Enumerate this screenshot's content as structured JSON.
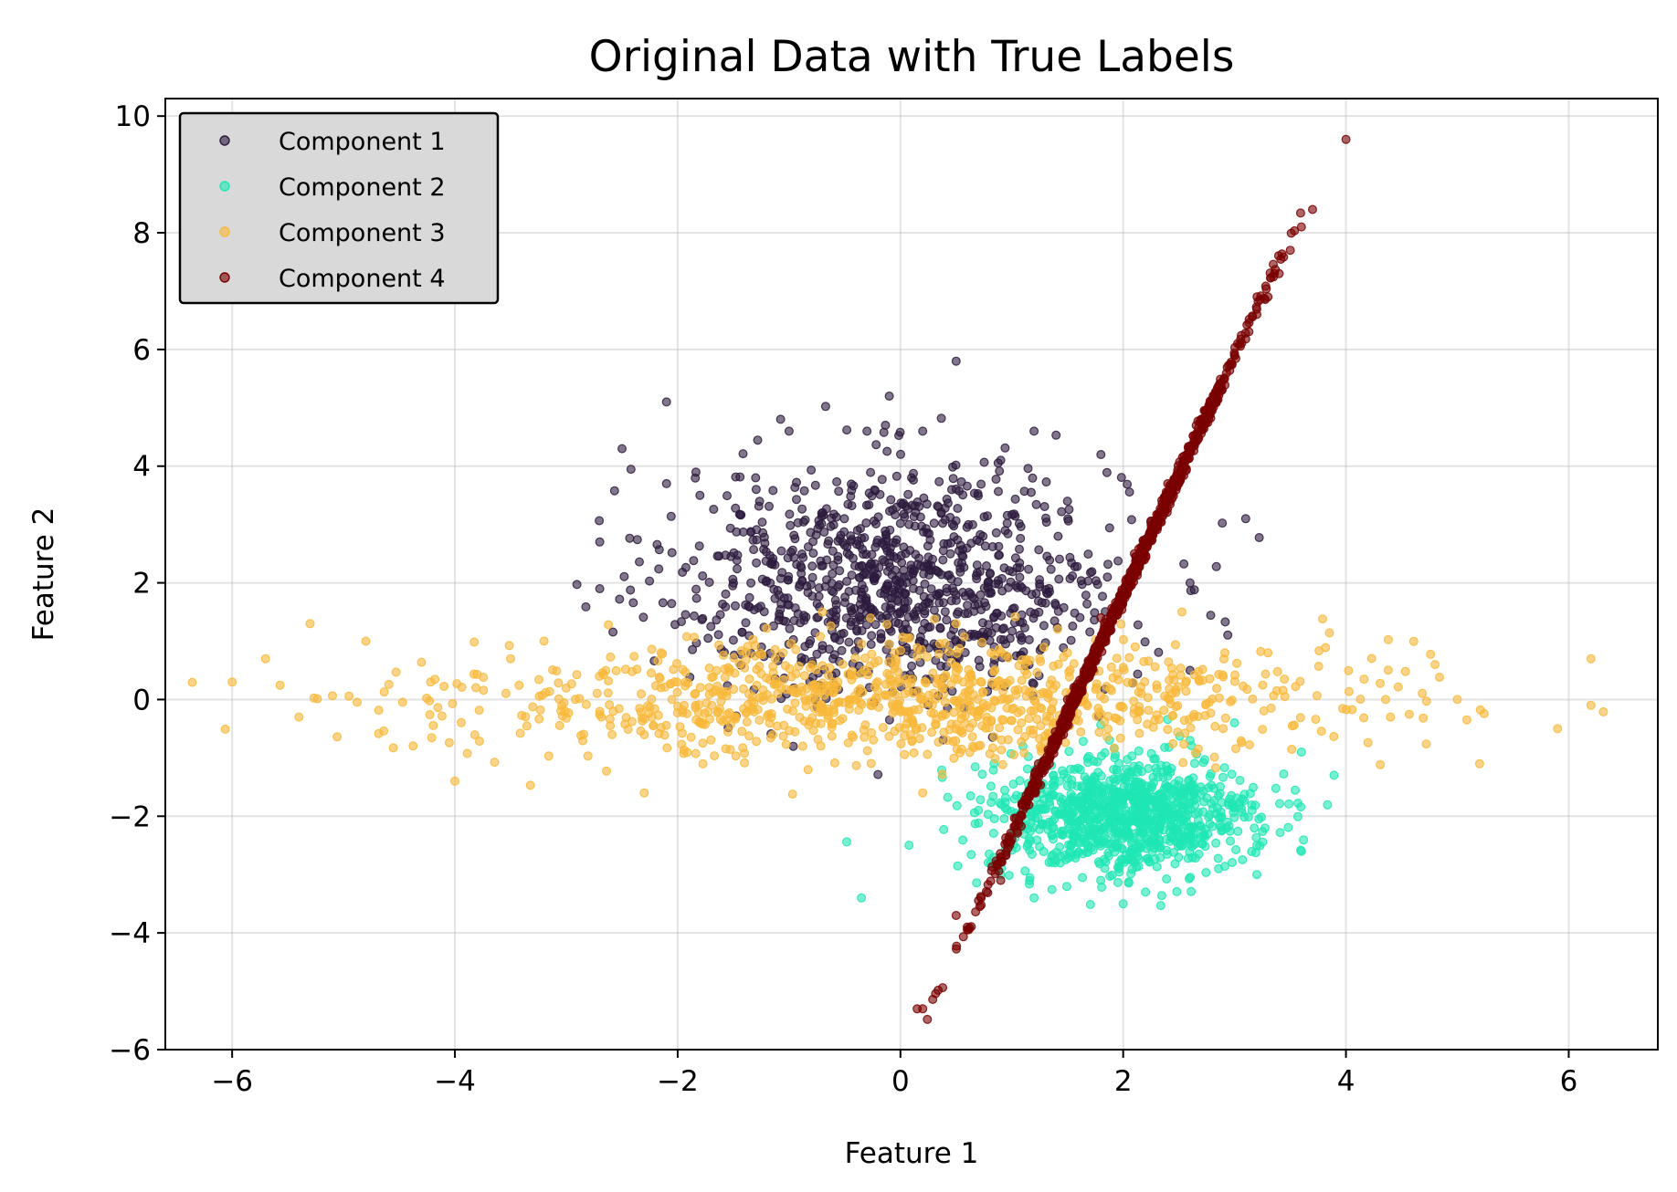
{
  "chart_data": {
    "type": "scatter",
    "title": "Original Data with True Labels",
    "xlabel": "Feature 1",
    "ylabel": "Feature 2",
    "xlim": [
      -6.6,
      6.8
    ],
    "ylim": [
      -6.0,
      10.3
    ],
    "xticks": [
      -6,
      -4,
      -2,
      0,
      2,
      4,
      6
    ],
    "xtick_labels": [
      "−6",
      "−4",
      "−2",
      "0",
      "2",
      "4",
      "6"
    ],
    "yticks": [
      -6,
      -4,
      -2,
      0,
      2,
      4,
      6,
      8,
      10
    ],
    "ytick_labels": [
      "−6",
      "−4",
      "−2",
      "0",
      "2",
      "4",
      "6",
      "8",
      "10"
    ],
    "grid": true,
    "legend_position": "top-left",
    "series": [
      {
        "name": "Component 1",
        "color": "#2d1b3d",
        "distribution": {
          "mean": [
            0.0,
            2.0
          ],
          "std": [
            1.0,
            1.0
          ],
          "count": 1000
        },
        "points": [
          [
            -2.1,
            5.1
          ],
          [
            0.5,
            5.8
          ],
          [
            -2.5,
            4.3
          ],
          [
            -0.1,
            5.2
          ],
          [
            -1.0,
            4.6
          ],
          [
            3.1,
            3.1
          ],
          [
            -2.7,
            2.7
          ],
          [
            -2.7,
            1.9
          ],
          [
            -2.1,
            3.7
          ],
          [
            0.2,
            4.6
          ],
          [
            1.2,
            4.6
          ],
          [
            -1.8,
            3.5
          ],
          [
            0.9,
            4.1
          ],
          [
            2.6,
            0.5
          ],
          [
            1.8,
            4.2
          ],
          [
            -0.3,
            4.6
          ],
          [
            0.1,
            3.8
          ],
          [
            -1.3,
            3.8
          ],
          [
            1.5,
            3.4
          ],
          [
            2.6,
            2.0
          ]
        ]
      },
      {
        "name": "Component 2",
        "color": "#1ee6b4",
        "distribution": {
          "mean": [
            2.0,
            -2.0
          ],
          "std": [
            0.6,
            0.5
          ],
          "count": 1000
        },
        "points": [
          [
            2.6,
            -0.7
          ],
          [
            3.6,
            -2.6
          ],
          [
            3.6,
            -0.9
          ],
          [
            0.9,
            -3.0
          ],
          [
            1.2,
            -3.4
          ],
          [
            2.0,
            -3.5
          ],
          [
            0.7,
            -1.9
          ],
          [
            3.2,
            -2.5
          ],
          [
            3.0,
            -0.4
          ],
          [
            1.1,
            -0.8
          ],
          [
            2.2,
            -3.3
          ],
          [
            3.2,
            -3.0
          ]
        ]
      },
      {
        "name": "Component 3",
        "color": "#f8b839",
        "distribution": {
          "mean": [
            0.0,
            0.0
          ],
          "std": [
            2.0,
            0.5
          ],
          "count": 1000
        },
        "points": [
          [
            -6.0,
            0.3
          ],
          [
            -5.7,
            0.7
          ],
          [
            -5.4,
            -0.3
          ],
          [
            -5.3,
            1.3
          ],
          [
            -4.8,
            1.0
          ],
          [
            -4.0,
            -1.4
          ],
          [
            6.2,
            0.7
          ],
          [
            6.2,
            -0.1
          ],
          [
            5.9,
            -0.5
          ],
          [
            5.2,
            -1.1
          ],
          [
            5.0,
            0.0
          ],
          [
            4.8,
            0.6
          ],
          [
            4.4,
            -0.3
          ],
          [
            -3.5,
            0.7
          ],
          [
            -3.2,
            1.0
          ],
          [
            -0.7,
            1.5
          ],
          [
            0.2,
            -1.6
          ],
          [
            0.5,
            1.3
          ],
          [
            -2.3,
            -1.6
          ],
          [
            3.3,
            0.8
          ]
        ]
      },
      {
        "name": "Component 4",
        "color": "#7a0000",
        "distribution": {
          "line": {
            "slope": 4.1,
            "intercept": -6.4
          },
          "x_mean": 2.0,
          "x_std": 0.6,
          "residual_std": 0.08,
          "count": 1000
        },
        "points": [
          [
            4.0,
            9.6
          ],
          [
            3.7,
            8.4
          ],
          [
            3.6,
            8.1
          ],
          [
            3.5,
            7.7
          ],
          [
            3.4,
            7.3
          ],
          [
            3.3,
            6.9
          ],
          [
            3.2,
            6.6
          ],
          [
            0.2,
            -5.3
          ],
          [
            0.15,
            -5.3
          ],
          [
            0.6,
            -3.9
          ],
          [
            0.5,
            -3.7
          ],
          [
            0.9,
            -3.1
          ],
          [
            1.0,
            -2.4
          ],
          [
            1.2,
            -1.6
          ],
          [
            1.5,
            0.0
          ],
          [
            1.8,
            1.4
          ],
          [
            2.1,
            2.5
          ],
          [
            2.4,
            3.7
          ],
          [
            2.7,
            4.8
          ],
          [
            3.0,
            5.9
          ]
        ]
      }
    ]
  }
}
